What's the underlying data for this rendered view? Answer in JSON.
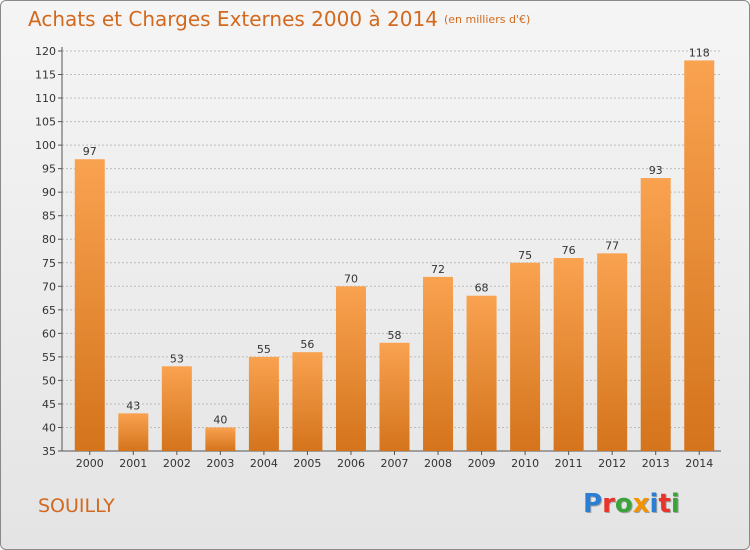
{
  "header": {
    "title": "Achats et Charges Externes 2000 à 2014",
    "unit_note": "(en milliers d'€)"
  },
  "footer": {
    "location": "SOUILLY",
    "brand": "Proxiti",
    "brand_colors": [
      "#2a7fd4",
      "#e8342a",
      "#3aa33a",
      "#f29400",
      "#2a7fd4",
      "#e8342a",
      "#3aa33a"
    ]
  },
  "colors": {
    "bar_top": "#f9a250",
    "bar_bottom": "#d4741c",
    "text": "#d2691e",
    "axis_text": "#333333",
    "grid": "#bdbdbd"
  },
  "chart_data": {
    "type": "bar",
    "title": "Achats et Charges Externes 2000 à 2014",
    "subtitle": "(en milliers d'€)",
    "categories": [
      "2000",
      "2001",
      "2002",
      "2003",
      "2004",
      "2005",
      "2006",
      "2007",
      "2008",
      "2009",
      "2010",
      "2011",
      "2012",
      "2013",
      "2014"
    ],
    "values": [
      97,
      43,
      53,
      40,
      55,
      56,
      70,
      58,
      72,
      68,
      75,
      76,
      77,
      93,
      118
    ],
    "ylim": [
      35,
      120
    ],
    "yticks": [
      35,
      40,
      45,
      50,
      55,
      60,
      65,
      70,
      75,
      80,
      85,
      90,
      95,
      100,
      105,
      110,
      115,
      120
    ],
    "xlabel": "",
    "ylabel": "",
    "grid": true
  }
}
